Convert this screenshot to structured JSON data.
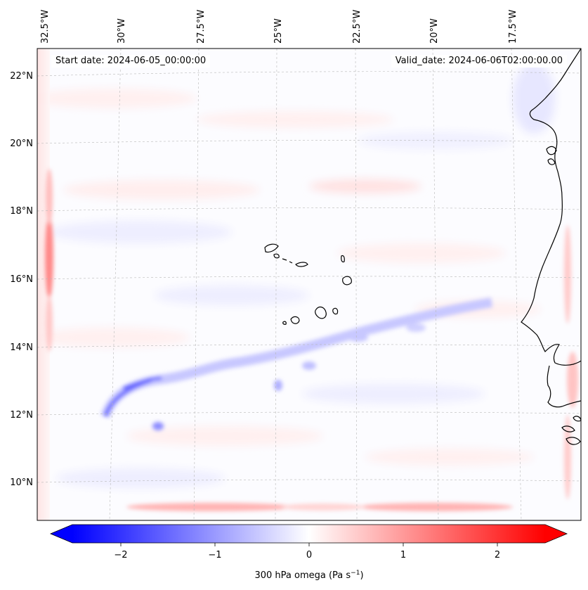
{
  "header": {
    "start_date": "Start date: 2024-06-05_00:00:00",
    "valid_date": "Valid_date: 2024-06-06T02:00:00.00"
  },
  "map": {
    "longitude_labels": [
      "32.5°W",
      "30°W",
      "27.5°W",
      "25°W",
      "22.5°W",
      "20°W",
      "17.5°W"
    ],
    "latitude_labels": [
      "22°N",
      "20°N",
      "18°N",
      "16°N",
      "14°N",
      "12°N",
      "10°N"
    ]
  },
  "colorbar": {
    "tick_labels": [
      "−2",
      "−1",
      "0",
      "1",
      "2"
    ],
    "label_main": "300 hPa omega (Pa s",
    "label_exp": "−1",
    "label_close": ")",
    "colors": {
      "min": "#0000ff",
      "mid": "#ffffff",
      "max": "#ff0000"
    }
  }
}
